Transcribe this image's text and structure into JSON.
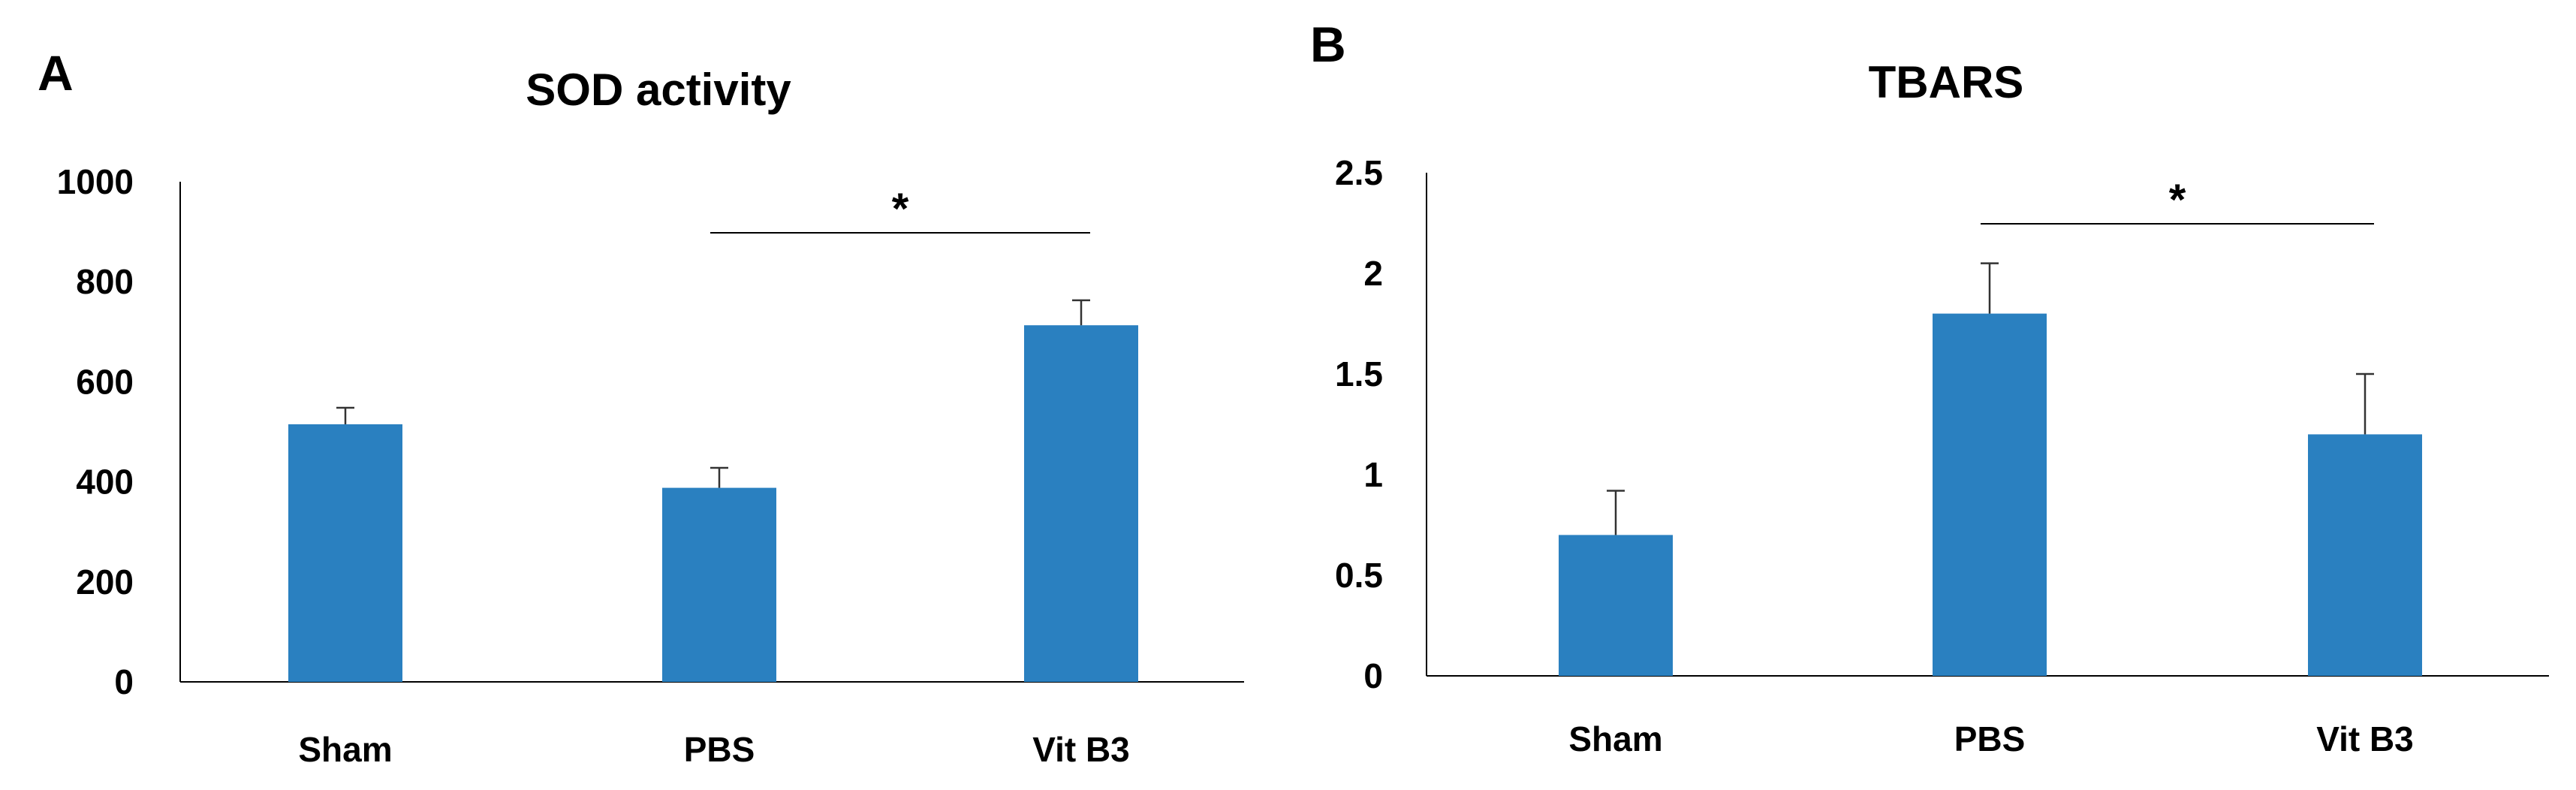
{
  "chart_data": [
    {
      "panel_label": "A",
      "type": "bar",
      "title": "SOD activity",
      "xlabel": "",
      "ylabel": "",
      "categories": [
        "Sham",
        "PBS",
        "Vit B3"
      ],
      "values": [
        515,
        388,
        713
      ],
      "error": [
        33,
        40,
        50
      ],
      "ylim": [
        0,
        1000
      ],
      "yticks": [
        0,
        200,
        400,
        600,
        800,
        1000
      ],
      "ytick_labels": [
        "0",
        "200",
        "400",
        "600",
        "800",
        "1000"
      ],
      "bar_color": "#2a80c0",
      "significance": {
        "from": "PBS",
        "to": "Vit B3",
        "label": "*"
      },
      "grid": false,
      "legend": false
    },
    {
      "panel_label": "B",
      "type": "bar",
      "title": "TBARS",
      "xlabel": "",
      "ylabel": "",
      "categories": [
        "Sham",
        "PBS",
        "Vit B3"
      ],
      "values": [
        0.7,
        1.8,
        1.2
      ],
      "error": [
        0.22,
        0.25,
        0.3
      ],
      "ylim": [
        0,
        2.5
      ],
      "yticks": [
        0,
        0.5,
        1,
        1.5,
        2,
        2.5
      ],
      "ytick_labels": [
        "0",
        "0.5",
        "1",
        "1.5",
        "2",
        "2.5"
      ],
      "bar_color": "#2a80c0",
      "significance": {
        "from": "PBS",
        "to": "Vit B3",
        "label": "*"
      },
      "grid": false,
      "legend": false
    }
  ]
}
